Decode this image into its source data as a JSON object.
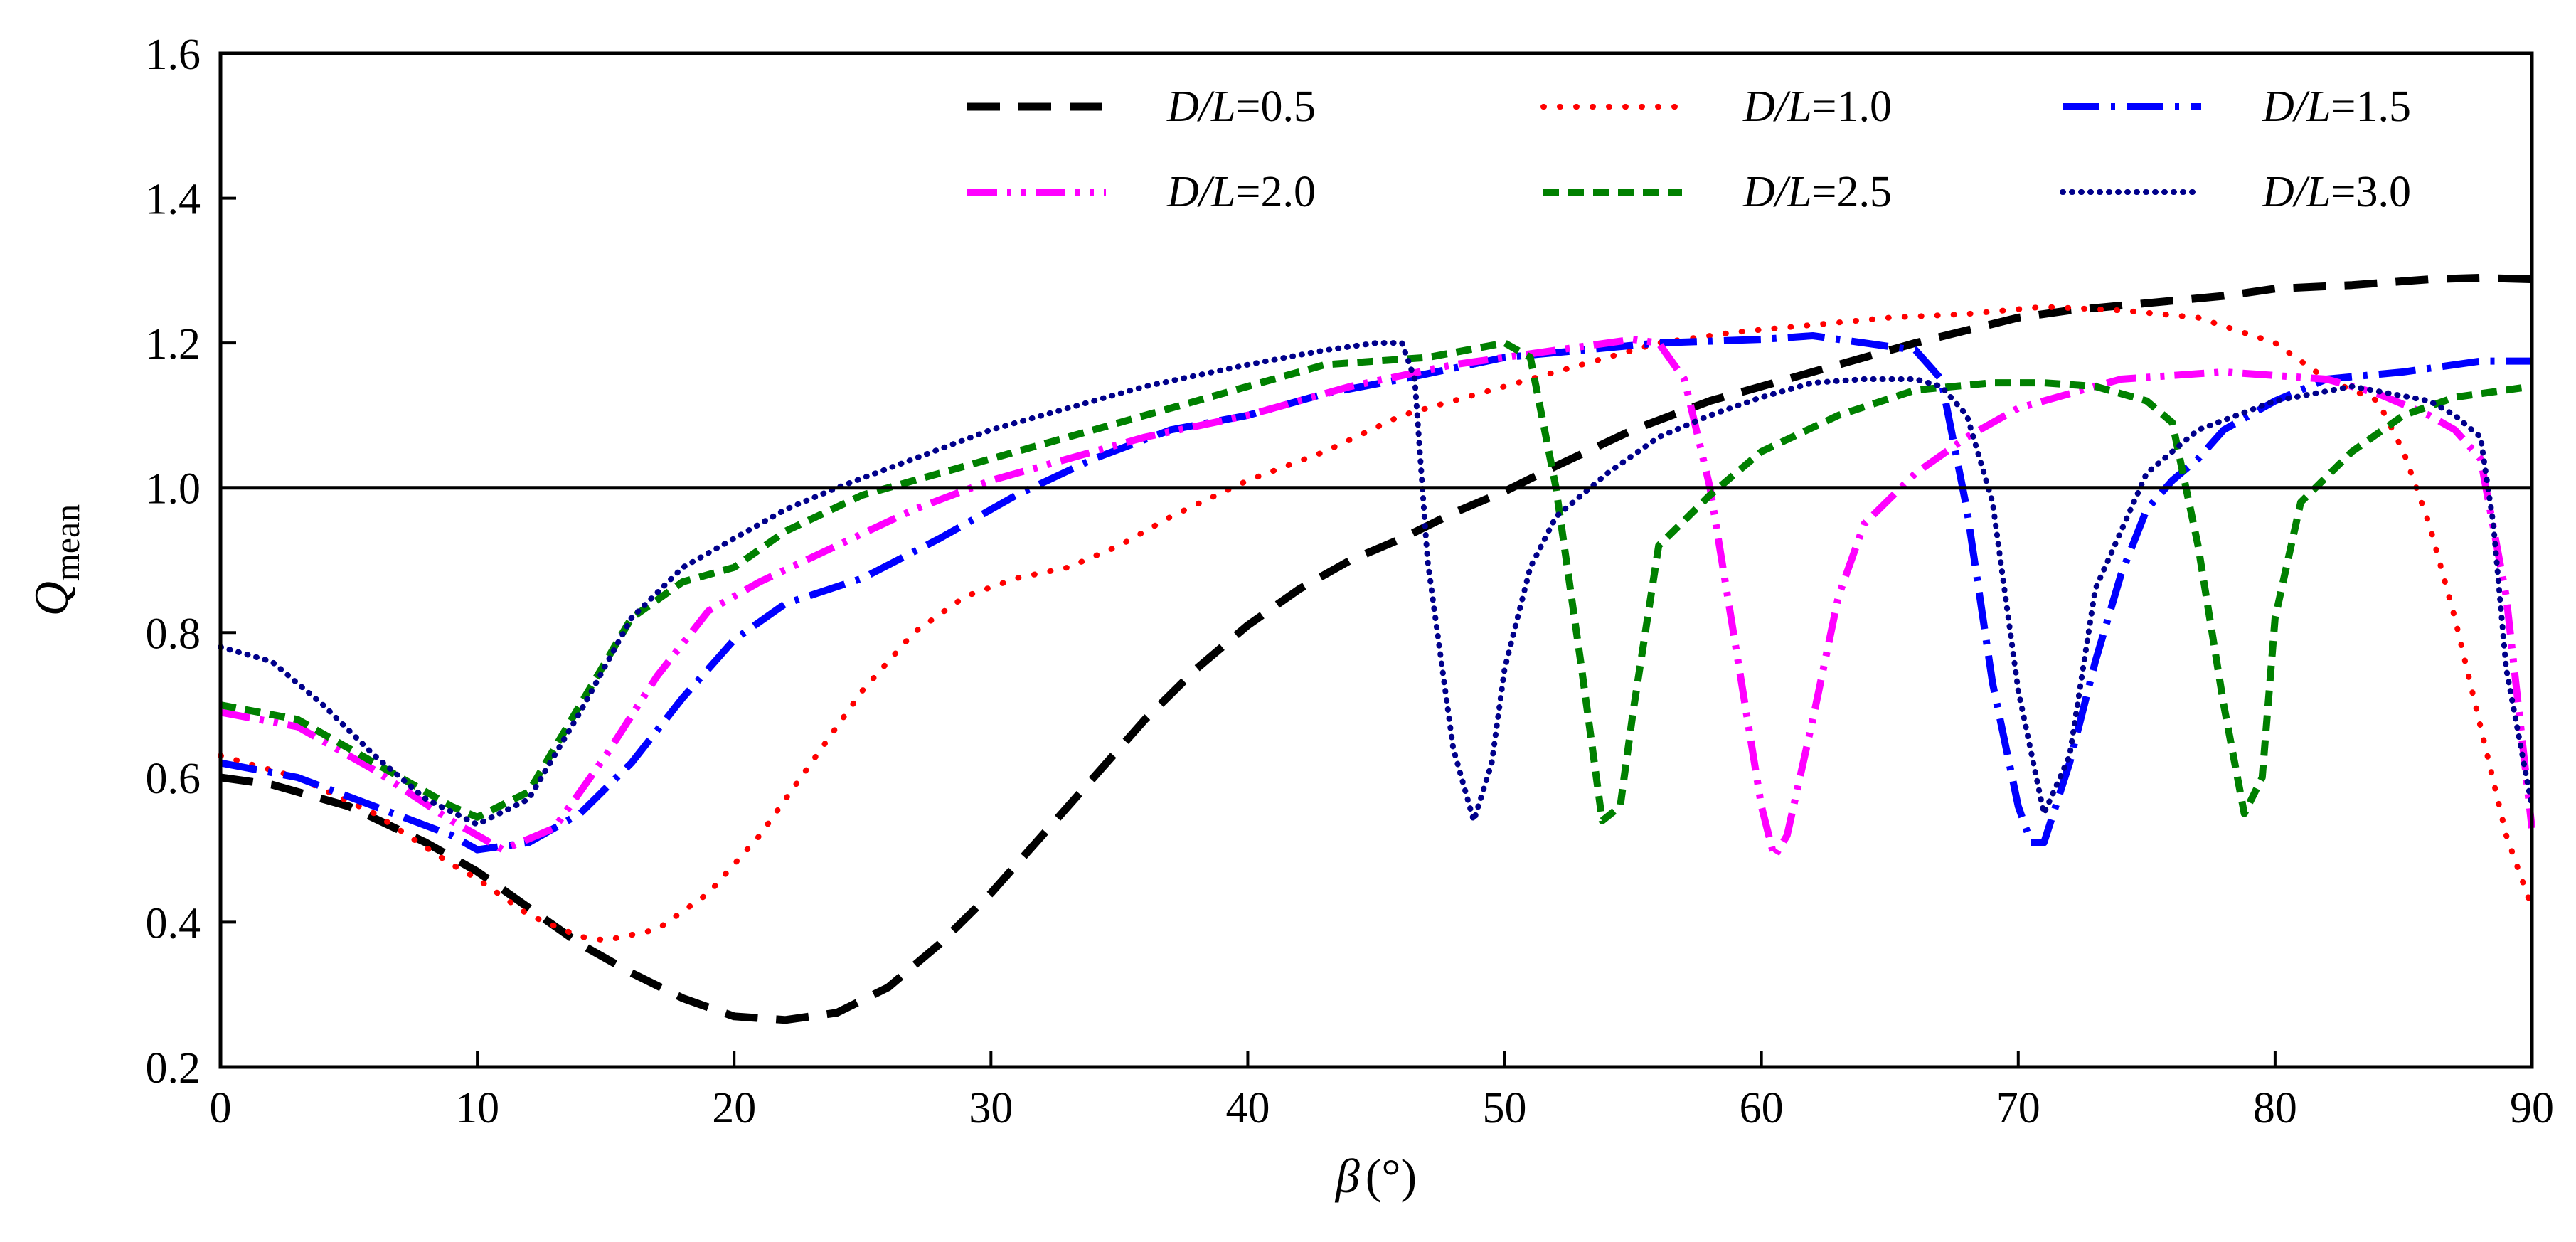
{
  "chart_data": {
    "type": "line",
    "title": "",
    "xlabel": {
      "symbol": "β",
      "unit": "(°)"
    },
    "ylabel": {
      "symbol": "Q",
      "subscript": "mean"
    },
    "xlim": [
      0,
      90
    ],
    "ylim": [
      0.2,
      1.6
    ],
    "x_ticks": [
      "0",
      "10",
      "20",
      "30",
      "40",
      "50",
      "60",
      "70",
      "80",
      "90"
    ],
    "y_ticks": [
      "0.2",
      "0.4",
      "0.6",
      "0.8",
      "1.0",
      "1.2",
      "1.4",
      "1.6"
    ],
    "reference_line": {
      "y": 1.0,
      "color": "#000000"
    },
    "legend_position": "top-right",
    "series": [
      {
        "name": "D/L=0.5",
        "label_var": "D/L",
        "label_eq": "=0.5",
        "color": "#000000",
        "style": "dash",
        "x": [
          0,
          2,
          5,
          8,
          10,
          12,
          14,
          16,
          18,
          20,
          22,
          24,
          26,
          28,
          30,
          32,
          34,
          36,
          38,
          40,
          42,
          44,
          46,
          48,
          50,
          52,
          55,
          58,
          60,
          63,
          66,
          70,
          72,
          75,
          78,
          80,
          83,
          86,
          88,
          90
        ],
        "values": [
          0.6,
          0.59,
          0.56,
          0.51,
          0.47,
          0.42,
          0.37,
          0.33,
          0.295,
          0.27,
          0.265,
          0.275,
          0.31,
          0.37,
          0.44,
          0.52,
          0.6,
          0.68,
          0.75,
          0.81,
          0.86,
          0.9,
          0.93,
          0.965,
          0.995,
          1.03,
          1.08,
          1.12,
          1.14,
          1.17,
          1.2,
          1.235,
          1.245,
          1.255,
          1.265,
          1.275,
          1.28,
          1.288,
          1.29,
          1.288
        ]
      },
      {
        "name": "D/L=1.0",
        "label_var": "D/L",
        "label_eq": "=1.0",
        "color": "#ff0000",
        "style": "dot",
        "x": [
          0,
          3,
          6,
          9,
          10,
          12,
          14,
          15,
          17,
          19,
          21,
          23,
          25,
          27,
          29,
          31,
          33,
          35,
          37,
          40,
          43,
          46,
          50,
          53,
          56,
          59,
          62,
          65,
          68,
          71,
          74,
          77,
          80,
          82,
          84,
          85,
          86,
          87,
          88,
          89,
          90
        ],
        "values": [
          0.63,
          0.6,
          0.55,
          0.48,
          0.46,
          0.41,
          0.38,
          0.375,
          0.39,
          0.44,
          0.52,
          0.62,
          0.72,
          0.8,
          0.85,
          0.875,
          0.89,
          0.92,
          0.96,
          1.01,
          1.05,
          1.1,
          1.14,
          1.17,
          1.2,
          1.215,
          1.225,
          1.235,
          1.24,
          1.25,
          1.245,
          1.235,
          1.2,
          1.15,
          1.12,
          1.05,
          0.95,
          0.82,
          0.67,
          0.52,
          0.42
        ]
      },
      {
        "name": "D/L=1.5",
        "label_var": "D/L",
        "label_eq": "=1.5",
        "color": "#0000ff",
        "style": "dashdot",
        "x": [
          0,
          3,
          6,
          9,
          10,
          12,
          14,
          16,
          18,
          20,
          22,
          25,
          28,
          31,
          34,
          37,
          40,
          43,
          46,
          50,
          53,
          56,
          60,
          62,
          64,
          66,
          67,
          68,
          69,
          70,
          70.5,
          71,
          72,
          73,
          74,
          75,
          76,
          77,
          78,
          80,
          82,
          85,
          88,
          90
        ],
        "values": [
          0.62,
          0.6,
          0.56,
          0.52,
          0.5,
          0.51,
          0.55,
          0.62,
          0.71,
          0.79,
          0.84,
          0.875,
          0.93,
          0.99,
          1.04,
          1.08,
          1.1,
          1.13,
          1.15,
          1.18,
          1.19,
          1.2,
          1.205,
          1.21,
          1.2,
          1.19,
          1.15,
          0.97,
          0.73,
          0.56,
          0.51,
          0.51,
          0.62,
          0.76,
          0.88,
          0.97,
          1.01,
          1.04,
          1.08,
          1.12,
          1.15,
          1.16,
          1.175,
          1.175
        ]
      },
      {
        "name": "D/L=2.0",
        "label_var": "D/L",
        "label_eq": "=2.0",
        "color": "#ff00ff",
        "style": "dashdotdot",
        "x": [
          0,
          3,
          6,
          9,
          11,
          13,
          15,
          17,
          19,
          21,
          24,
          27,
          30,
          33,
          36,
          40,
          44,
          48,
          52,
          55,
          56,
          57,
          58,
          59,
          60,
          60.5,
          61,
          62,
          63,
          64,
          65,
          66,
          68,
          70,
          72,
          74,
          76,
          78,
          80,
          82,
          84,
          86,
          87,
          88,
          89,
          90
        ],
        "values": [
          0.69,
          0.67,
          0.61,
          0.54,
          0.5,
          0.53,
          0.63,
          0.74,
          0.83,
          0.87,
          0.92,
          0.97,
          1.01,
          1.04,
          1.07,
          1.1,
          1.14,
          1.17,
          1.19,
          1.205,
          1.2,
          1.15,
          1.0,
          0.78,
          0.56,
          0.49,
          0.52,
          0.68,
          0.85,
          0.95,
          0.985,
          1.02,
          1.07,
          1.11,
          1.13,
          1.15,
          1.155,
          1.16,
          1.155,
          1.15,
          1.13,
          1.1,
          1.08,
          1.04,
          0.85,
          0.53
        ]
      },
      {
        "name": "D/L=2.5",
        "label_var": "D/L",
        "label_eq": "=2.5",
        "color": "#008000",
        "style": "shortdash",
        "x": [
          0,
          3,
          6,
          9,
          10,
          12,
          14,
          16,
          18,
          20,
          22,
          25,
          28,
          31,
          34,
          37,
          40,
          43,
          47,
          50,
          51,
          52,
          53,
          53.8,
          54.5,
          55,
          56,
          58,
          60,
          63,
          66,
          69,
          71,
          73,
          75,
          76,
          77,
          78,
          78.8,
          79.5,
          80,
          81,
          83,
          85,
          87,
          90
        ],
        "values": [
          0.7,
          0.68,
          0.62,
          0.56,
          0.545,
          0.58,
          0.7,
          0.82,
          0.87,
          0.89,
          0.94,
          0.99,
          1.02,
          1.05,
          1.08,
          1.11,
          1.14,
          1.17,
          1.18,
          1.2,
          1.18,
          1.0,
          0.75,
          0.54,
          0.56,
          0.69,
          0.92,
          0.99,
          1.05,
          1.1,
          1.135,
          1.145,
          1.145,
          1.14,
          1.12,
          1.09,
          0.92,
          0.7,
          0.55,
          0.6,
          0.82,
          0.98,
          1.05,
          1.1,
          1.125,
          1.14
        ]
      },
      {
        "name": "D/L=3.0",
        "label_var": "D/L",
        "label_eq": "=3.0",
        "color": "#00008b",
        "style": "fine",
        "x": [
          0,
          2,
          4,
          6,
          8,
          10,
          12,
          14,
          16,
          18,
          20,
          22,
          24,
          27,
          30,
          33,
          36,
          40,
          43,
          45,
          46,
          46.5,
          47,
          48,
          48.8,
          49.5,
          50,
          51,
          52,
          54,
          56,
          58,
          60,
          62,
          64,
          66,
          67,
          68,
          69,
          70,
          71,
          72,
          73,
          75,
          77,
          80,
          83,
          86,
          87,
          88,
          88.5,
          89,
          90
        ],
        "values": [
          0.78,
          0.76,
          0.7,
          0.63,
          0.57,
          0.535,
          0.57,
          0.69,
          0.82,
          0.89,
          0.93,
          0.97,
          1.0,
          1.04,
          1.08,
          1.11,
          1.14,
          1.17,
          1.19,
          1.2,
          1.2,
          1.15,
          0.9,
          0.64,
          0.54,
          0.62,
          0.75,
          0.89,
          0.96,
          1.02,
          1.07,
          1.1,
          1.125,
          1.145,
          1.15,
          1.15,
          1.14,
          1.1,
          0.98,
          0.72,
          0.55,
          0.63,
          0.86,
          1.02,
          1.08,
          1.12,
          1.14,
          1.12,
          1.1,
          1.07,
          0.95,
          0.75,
          0.56
        ]
      }
    ]
  }
}
